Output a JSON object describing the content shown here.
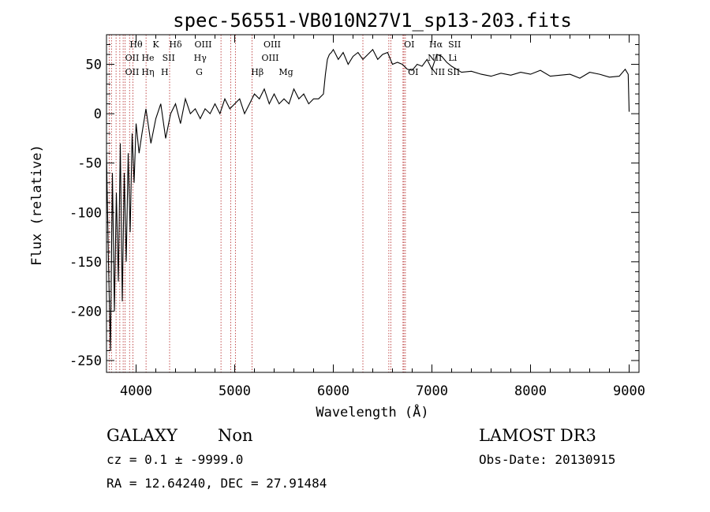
{
  "chart_data": {
    "type": "line",
    "title": "spec-56551-VB010N27V1_sp13-203.fits",
    "xlabel": "Wavelength (Å)",
    "ylabel": "Flux (relative)",
    "xlim": [
      3700,
      9100
    ],
    "ylim": [
      -262,
      80
    ],
    "x_ticks": [
      4000,
      5000,
      6000,
      7000,
      8000,
      9000
    ],
    "y_ticks": [
      -250,
      -200,
      -150,
      -100,
      -50,
      0,
      50
    ],
    "series": [
      {
        "name": "flux",
        "x": [
          3700,
          3720,
          3740,
          3760,
          3780,
          3800,
          3820,
          3840,
          3860,
          3880,
          3900,
          3920,
          3940,
          3960,
          3980,
          4000,
          4030,
          4060,
          4100,
          4150,
          4200,
          4250,
          4300,
          4350,
          4400,
          4450,
          4500,
          4550,
          4600,
          4650,
          4700,
          4750,
          4800,
          4850,
          4900,
          4950,
          5000,
          5050,
          5100,
          5150,
          5200,
          5250,
          5300,
          5350,
          5400,
          5450,
          5500,
          5550,
          5600,
          5650,
          5700,
          5750,
          5800,
          5850,
          5900,
          5920,
          5940,
          5960,
          5980,
          6000,
          6050,
          6100,
          6150,
          6200,
          6250,
          6300,
          6350,
          6400,
          6450,
          6500,
          6550,
          6600,
          6650,
          6700,
          6750,
          6800,
          6850,
          6900,
          6950,
          7000,
          7050,
          7100,
          7150,
          7200,
          7250,
          7300,
          7400,
          7500,
          7600,
          7700,
          7800,
          7900,
          8000,
          8100,
          8200,
          8300,
          8400,
          8500,
          8600,
          8700,
          8800,
          8900,
          8960,
          8990,
          9000
        ],
        "y": [
          -40,
          -150,
          -240,
          -60,
          -200,
          -80,
          -170,
          -30,
          -190,
          -60,
          -150,
          -40,
          -120,
          -20,
          -70,
          -10,
          -40,
          -20,
          5,
          -30,
          -5,
          10,
          -25,
          0,
          10,
          -10,
          15,
          0,
          5,
          -5,
          5,
          0,
          10,
          0,
          15,
          5,
          10,
          15,
          0,
          10,
          20,
          15,
          25,
          10,
          20,
          10,
          15,
          10,
          25,
          15,
          20,
          10,
          15,
          15,
          20,
          40,
          55,
          60,
          62,
          65,
          55,
          62,
          50,
          58,
          62,
          55,
          60,
          65,
          55,
          60,
          62,
          50,
          52,
          50,
          45,
          44,
          50,
          48,
          55,
          45,
          60,
          58,
          52,
          48,
          45,
          42,
          43,
          40,
          38,
          41,
          39,
          42,
          40,
          44,
          38,
          39,
          40,
          36,
          42,
          40,
          37,
          38,
          45,
          40,
          2
        ]
      }
    ],
    "annotation_lines_x": [
      3727,
      3750,
      3797,
      3835,
      3869,
      3889,
      3934,
      3968,
      4101,
      4340,
      4861,
      4959,
      5007,
      5175,
      6300,
      6563,
      6583,
      6707,
      6716,
      6731
    ],
    "line_labels": [
      {
        "text": "Hθ",
        "x": 4000,
        "row": 1
      },
      {
        "text": "K",
        "x": 4200,
        "row": 1
      },
      {
        "text": "Hδ",
        "x": 4400,
        "row": 1
      },
      {
        "text": "OIII",
        "x": 4680,
        "row": 1
      },
      {
        "text": "OIII",
        "x": 5380,
        "row": 1
      },
      {
        "text": "OI",
        "x": 6770,
        "row": 1
      },
      {
        "text": "Hα",
        "x": 7040,
        "row": 1
      },
      {
        "text": "SII",
        "x": 7230,
        "row": 1
      },
      {
        "text": "OII",
        "x": 3960,
        "row": 2
      },
      {
        "text": "He",
        "x": 4120,
        "row": 2
      },
      {
        "text": "SII",
        "x": 4330,
        "row": 2
      },
      {
        "text": "Hγ",
        "x": 4650,
        "row": 2
      },
      {
        "text": "OIII",
        "x": 5360,
        "row": 2
      },
      {
        "text": "NII",
        "x": 7030,
        "row": 2
      },
      {
        "text": "Li",
        "x": 7210,
        "row": 2
      },
      {
        "text": "OII",
        "x": 3960,
        "row": 3
      },
      {
        "text": "Hη",
        "x": 4120,
        "row": 3
      },
      {
        "text": "H",
        "x": 4290,
        "row": 3
      },
      {
        "text": "G",
        "x": 4640,
        "row": 3
      },
      {
        "text": "Hβ",
        "x": 5230,
        "row": 3
      },
      {
        "text": "Mg",
        "x": 5520,
        "row": 3
      },
      {
        "text": "OI",
        "x": 6810,
        "row": 3
      },
      {
        "text": "NII",
        "x": 7060,
        "row": 3
      },
      {
        "text": "SII",
        "x": 7220,
        "row": 3
      }
    ]
  },
  "info": {
    "object_class": "GALAXY",
    "subclass": "Non",
    "survey": "LAMOST DR3",
    "redshift": "cz = 0.1 ± -9999.0",
    "obs_date": "Obs-Date: 20130915",
    "coords": "RA =  12.64240, DEC =  27.91484"
  }
}
